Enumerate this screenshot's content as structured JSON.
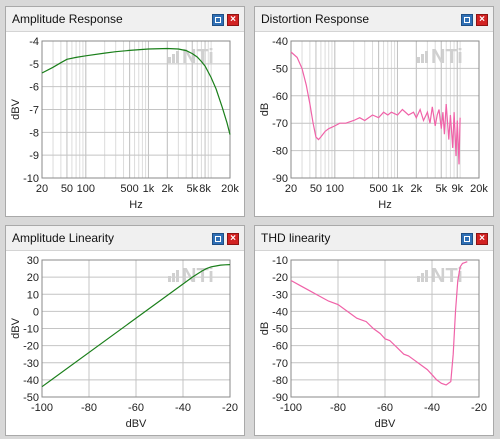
{
  "charts": [
    {
      "title": "Amplitude Response",
      "chart_data": {
        "type": "line",
        "xscale": "log",
        "xlim": [
          20,
          20000
        ],
        "ylim": [
          -10,
          -4
        ],
        "xticks": [
          20,
          50,
          100,
          500,
          1000,
          2000,
          5000,
          8000,
          20000
        ],
        "xtick_labels": [
          "20",
          "50",
          "100",
          "500",
          "1k",
          "2k",
          "5k",
          "8k",
          "20k"
        ],
        "yticks": [
          -10,
          -9,
          -8,
          -7,
          -6,
          -5,
          -4
        ],
        "ytick_labels": [
          "-10",
          "-9",
          "-8",
          "-7",
          "-6",
          "-5",
          "-4"
        ],
        "xlabel": "Hz",
        "ylabel": "dBV",
        "grid": true,
        "series": [
          {
            "color": "#1a7f1a",
            "x": [
              20,
              30,
              40,
              50,
              70,
              100,
              200,
              300,
              500,
              1000,
              2000,
              3000,
              4000,
              5000,
              6000,
              7000,
              8000,
              10000,
              12000,
              15000,
              18000,
              20000
            ],
            "y": [
              -5.4,
              -5.15,
              -4.95,
              -4.8,
              -4.72,
              -4.65,
              -4.53,
              -4.47,
              -4.41,
              -4.35,
              -4.33,
              -4.35,
              -4.42,
              -4.55,
              -4.7,
              -4.9,
              -5.1,
              -5.6,
              -6.1,
              -6.9,
              -7.6,
              -8.1
            ]
          }
        ]
      },
      "watermark": "NTi"
    },
    {
      "title": "Distortion Response",
      "chart_data": {
        "type": "line",
        "xscale": "log",
        "xlim": [
          20,
          20000
        ],
        "ylim": [
          -90,
          -40
        ],
        "xticks": [
          20,
          50,
          100,
          500,
          1000,
          2000,
          5000,
          9000,
          20000
        ],
        "xtick_labels": [
          "20",
          "50",
          "100",
          "500",
          "1k",
          "2k",
          "5k",
          "9k",
          "20k"
        ],
        "yticks": [
          -90,
          -80,
          -70,
          -60,
          -50,
          -40
        ],
        "ytick_labels": [
          "-90",
          "-80",
          "-70",
          "-60",
          "-50",
          "-40"
        ],
        "xlabel": "Hz",
        "ylabel": "dB",
        "grid": true,
        "series": [
          {
            "color": "#f062a8",
            "x": [
              20,
              25,
              30,
              35,
              40,
              45,
              50,
              55,
              60,
              70,
              80,
              100,
              120,
              150,
              200,
              250,
              300,
              400,
              500,
              600,
              700,
              800,
              1000,
              1200,
              1500,
              1800,
              2000,
              2300,
              2600,
              3000,
              3300,
              3600,
              4000,
              4300,
              4600,
              5000,
              5300,
              5600,
              6000,
              6300,
              6600,
              7000,
              7300,
              7600,
              8000,
              8300,
              8600,
              9000,
              9300,
              9600,
              10000
            ],
            "y": [
              -44,
              -46,
              -50,
              -56,
              -63,
              -70,
              -75,
              -76,
              -75,
              -73,
              -72,
              -71,
              -70,
              -70,
              -69,
              -68,
              -69,
              -67,
              -68,
              -66,
              -67,
              -66,
              -67,
              -65,
              -67,
              -66,
              -68,
              -65,
              -69,
              -66,
              -70,
              -64,
              -71,
              -67,
              -65,
              -72,
              -66,
              -74,
              -63,
              -70,
              -76,
              -67,
              -73,
              -79,
              -66,
              -74,
              -82,
              -69,
              -77,
              -85,
              -68
            ]
          }
        ]
      },
      "watermark": "NTi"
    },
    {
      "title": "Amplitude Linearity",
      "chart_data": {
        "type": "line",
        "xlim": [
          -100,
          -20
        ],
        "ylim": [
          -50,
          30
        ],
        "xticks": [
          -100,
          -80,
          -60,
          -40,
          -20
        ],
        "xtick_labels": [
          "-100",
          "-80",
          "-60",
          "-40",
          "-20"
        ],
        "yticks": [
          -50,
          -40,
          -30,
          -20,
          -10,
          0,
          10,
          20,
          30
        ],
        "ytick_labels": [
          "-50",
          "-40",
          "-30",
          "-20",
          "-10",
          "0",
          "10",
          "20",
          "30"
        ],
        "xlabel": "dBV",
        "ylabel": "dBV",
        "grid": true,
        "series": [
          {
            "color": "#1a7f1a",
            "x": [
              -100,
              -40,
              -36,
              -32,
              -30,
              -28,
              -26,
              -24,
              -22,
              -20
            ],
            "y": [
              -44,
              16,
              20,
              23.5,
              25,
              26,
              26.5,
              27,
              27.2,
              27.3
            ]
          }
        ]
      },
      "watermark": "NTi"
    },
    {
      "title": "THD linearity",
      "chart_data": {
        "type": "line",
        "xlim": [
          -100,
          -20
        ],
        "ylim": [
          -90,
          -10
        ],
        "xticks": [
          -100,
          -80,
          -60,
          -40,
          -20
        ],
        "xtick_labels": [
          "-100",
          "-80",
          "-60",
          "-40",
          "-20"
        ],
        "yticks": [
          -90,
          -80,
          -70,
          -60,
          -50,
          -40,
          -30,
          -20,
          -10
        ],
        "ytick_labels": [
          "-90",
          "-80",
          "-70",
          "-60",
          "-50",
          "-40",
          "-30",
          "-20",
          "-10"
        ],
        "xlabel": "dBV",
        "ylabel": "dB",
        "grid": true,
        "series": [
          {
            "color": "#f062a8",
            "x": [
              -100,
              -96,
              -92,
              -88,
              -84,
              -80,
              -76,
              -72,
              -70,
              -68,
              -65,
              -62,
              -60,
              -58,
              -55,
              -52,
              -50,
              -48,
              -45,
              -42,
              -40,
              -38,
              -36,
              -34,
              -33,
              -32,
              -31,
              -30,
              -29,
              -28,
              -27,
              -26,
              -25
            ],
            "y": [
              -22,
              -25,
              -28,
              -31,
              -34,
              -36,
              -40,
              -44,
              -45,
              -46,
              -50,
              -53,
              -56,
              -57,
              -61,
              -65,
              -66,
              -68,
              -71,
              -74,
              -77,
              -80,
              -82,
              -83,
              -82,
              -81,
              -65,
              -40,
              -22,
              -14,
              -12,
              -11.5,
              -11
            ]
          }
        ]
      },
      "watermark": "NTi"
    }
  ]
}
